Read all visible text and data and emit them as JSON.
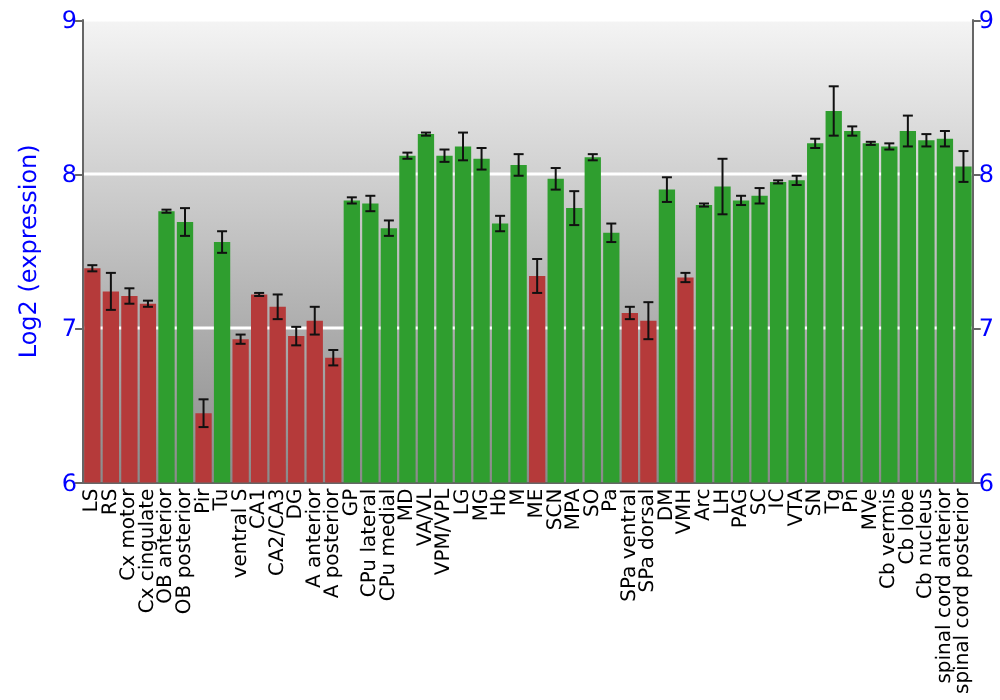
{
  "chart_data": {
    "type": "bar",
    "ylabel": "Log2 (expression)",
    "categories": [
      "LS",
      "RS",
      "Cx motor",
      "Cx cingulate",
      "OB anterior",
      "OB posterior",
      "Pir",
      "Tu",
      "ventral S",
      "CA1",
      "CA2/CA3",
      "DG",
      "A anterior",
      "A posterior",
      "GP",
      "CPu lateral",
      "CPu medial",
      "MD",
      "VA/VL",
      "VPM/VPL",
      "LG",
      "MG",
      "Hb",
      "M",
      "ME",
      "SCN",
      "MPA",
      "SO",
      "Pa",
      "SPa ventral",
      "SPa dorsal",
      "DM",
      "VMH",
      "Arc",
      "LH",
      "PAG",
      "SC",
      "IC",
      "VTA",
      "SN",
      "Tg",
      "Pn",
      "MVe",
      "Cb vermis",
      "Cb lobe",
      "Cb nucleus",
      "spinal cord anterior",
      "spinal cord posterior"
    ],
    "values": [
      7.39,
      7.24,
      7.21,
      7.16,
      7.76,
      7.69,
      6.45,
      7.56,
      6.93,
      7.22,
      7.14,
      6.95,
      7.05,
      6.81,
      7.83,
      7.81,
      7.65,
      8.12,
      8.26,
      8.12,
      8.18,
      8.1,
      7.68,
      8.06,
      7.34,
      7.97,
      7.78,
      8.11,
      7.62,
      7.1,
      7.05,
      7.9,
      7.33,
      7.8,
      7.92,
      7.83,
      7.86,
      7.95,
      7.96,
      8.2,
      8.41,
      8.28,
      8.2,
      8.18,
      8.28,
      8.22,
      8.23,
      8.05
    ],
    "errors": [
      0.02,
      0.12,
      0.05,
      0.02,
      0.01,
      0.09,
      0.09,
      0.07,
      0.03,
      0.01,
      0.08,
      0.06,
      0.09,
      0.05,
      0.02,
      0.05,
      0.05,
      0.02,
      0.01,
      0.04,
      0.09,
      0.07,
      0.05,
      0.07,
      0.11,
      0.07,
      0.11,
      0.02,
      0.06,
      0.04,
      0.12,
      0.08,
      0.03,
      0.01,
      0.18,
      0.03,
      0.05,
      0.01,
      0.03,
      0.03,
      0.16,
      0.03,
      0.01,
      0.02,
      0.1,
      0.04,
      0.05,
      0.1
    ],
    "colors": [
      "#b53a3a",
      "#b53a3a",
      "#b53a3a",
      "#b53a3a",
      "#2f9e2f",
      "#2f9e2f",
      "#b53a3a",
      "#2f9e2f",
      "#b53a3a",
      "#b53a3a",
      "#b53a3a",
      "#b53a3a",
      "#b53a3a",
      "#b53a3a",
      "#2f9e2f",
      "#2f9e2f",
      "#2f9e2f",
      "#2f9e2f",
      "#2f9e2f",
      "#2f9e2f",
      "#2f9e2f",
      "#2f9e2f",
      "#2f9e2f",
      "#2f9e2f",
      "#b53a3a",
      "#2f9e2f",
      "#2f9e2f",
      "#2f9e2f",
      "#2f9e2f",
      "#b53a3a",
      "#b53a3a",
      "#2f9e2f",
      "#b53a3a",
      "#2f9e2f",
      "#2f9e2f",
      "#2f9e2f",
      "#2f9e2f",
      "#2f9e2f",
      "#2f9e2f",
      "#2f9e2f",
      "#2f9e2f",
      "#2f9e2f",
      "#2f9e2f",
      "#2f9e2f",
      "#2f9e2f",
      "#2f9e2f",
      "#2f9e2f",
      "#2f9e2f"
    ],
    "ylim": [
      6,
      9
    ],
    "yticks": [
      6,
      7,
      8,
      9
    ],
    "y2lim": [
      6,
      9
    ],
    "y2ticks": [
      6,
      7,
      8,
      9
    ],
    "grid": "y"
  }
}
